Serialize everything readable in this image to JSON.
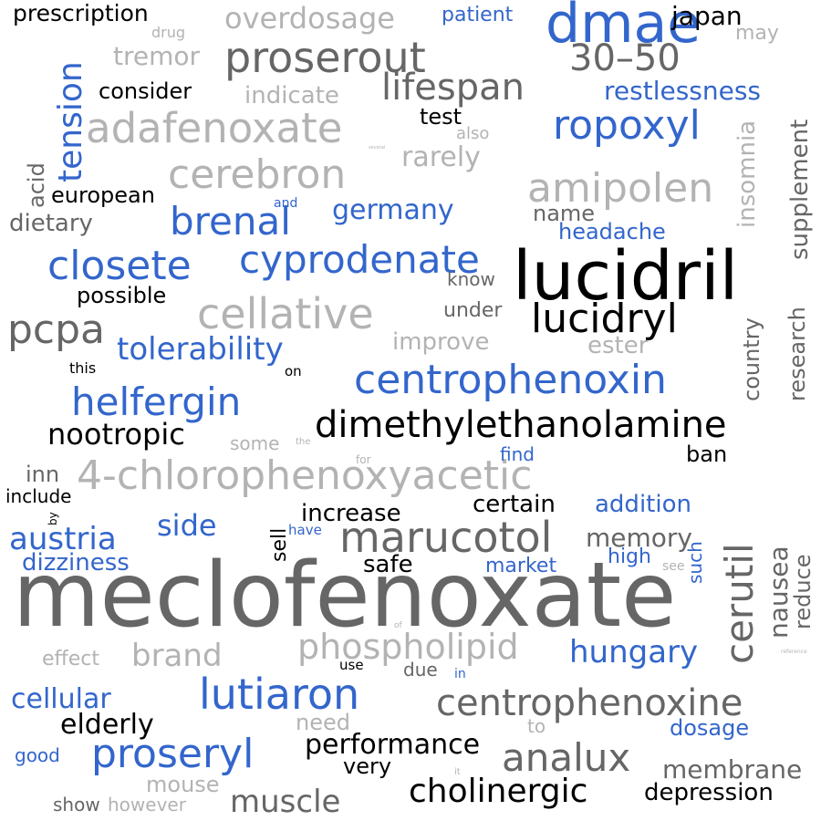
{
  "palette": {
    "black": "#000000",
    "dark_gray": "#666666",
    "light_gray": "#b3b3b3",
    "blue": "#3366cc",
    "background": "#ffffff"
  },
  "words": [
    "meclofenoxate",
    "lucidril",
    "dmae",
    "dimethylethanolamine",
    "4-chlorophenoxyacetic",
    "centrophenoxine",
    "proserout",
    "adafenoxate",
    "centrophenoxin",
    "cyprodenate",
    "cerebron",
    "cellative",
    "marucotol",
    "lutiaron",
    "proseryl",
    "analux",
    "helfergin",
    "closete",
    "ropoxyl",
    "amipolen",
    "lucidryl",
    "brenal",
    "cerutil",
    "30–50",
    "lifespan",
    "pcpa",
    "phospholipid",
    "tolerability",
    "overdosage",
    "prescription",
    "hungary",
    "austria",
    "cholinergic",
    "nootropic",
    "tension",
    "brand",
    "restlessness",
    "germany",
    "performance",
    "muscle",
    "membrane",
    "elderly",
    "cellular",
    "supplement",
    "insomnia",
    "rarely",
    "indicate",
    "tremor",
    "japan",
    "consider",
    "test",
    "european",
    "possible",
    "headache",
    "name",
    "dietary",
    "acid",
    "know",
    "under",
    "improve",
    "ester",
    "country",
    "research",
    "side",
    "increase",
    "certain",
    "addition",
    "memory",
    "safe",
    "market",
    "high",
    "such",
    "nausea",
    "reduce",
    "dizziness",
    "dosage",
    "depression",
    "very",
    "need",
    "to",
    "mouse",
    "show",
    "however",
    "good",
    "effect",
    "use",
    "due",
    "in",
    "sell",
    "have",
    "find",
    "ban",
    "inn",
    "include",
    "by",
    "some",
    "the",
    "for",
    "this",
    "on",
    "also",
    "drug",
    "patient",
    "may",
    "and",
    "see",
    "of",
    "it",
    "reference",
    "several"
  ]
}
